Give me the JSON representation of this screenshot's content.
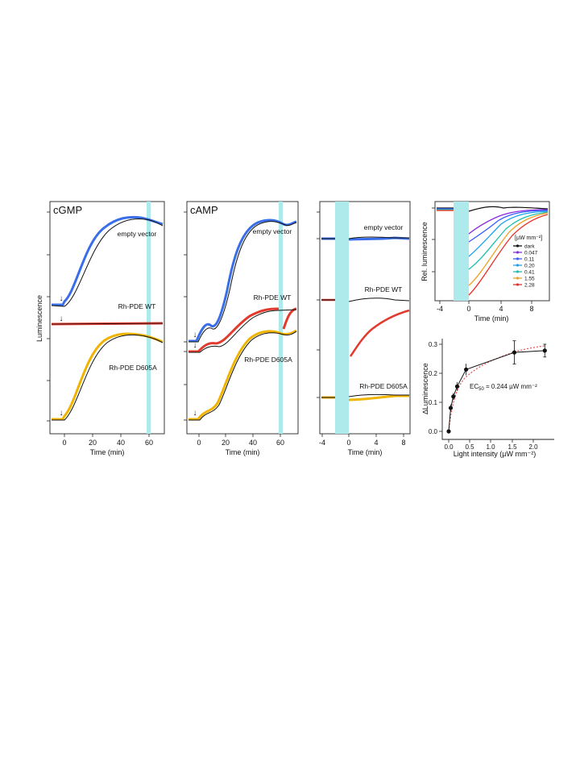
{
  "colors": {
    "light_band": "#aeeaec",
    "blue": "#3a6ee8",
    "red": "#e23a2e",
    "yellow": "#f0b400",
    "black": "#111111",
    "dashed_fit": "#e05050"
  },
  "chart_data": [
    {
      "id": "cgmp",
      "type": "line",
      "title": "cGMP",
      "xlabel": "Time (min)",
      "ylabel": "Luminescence",
      "xlim": [
        -10,
        70
      ],
      "xticks": [
        0,
        20,
        40,
        60
      ],
      "tick_labels": [
        "0",
        "20",
        "40",
        "60"
      ],
      "light_pulse": [
        60,
        62
      ],
      "stimulus_time": 0,
      "series": [
        {
          "name": "empty vector",
          "baseline": 0,
          "plateau": 1
        },
        {
          "name": "Rh-PDE WT",
          "baseline": 0,
          "plateau": 0
        },
        {
          "name": "Rh-PDE D605A",
          "baseline": 0,
          "plateau": 1
        }
      ]
    },
    {
      "id": "camp",
      "type": "line",
      "title": "cAMP",
      "xlabel": "Time (min)",
      "xlim": [
        -10,
        72
      ],
      "xticks": [
        0,
        20,
        40,
        60
      ],
      "tick_labels": [
        "0",
        "20",
        "40",
        "60"
      ],
      "light_pulse": [
        60,
        62
      ],
      "stimulus_time": 0,
      "series": [
        {
          "name": "empty vector"
        },
        {
          "name": "Rh-PDE WT"
        },
        {
          "name": "Rh-PDE D605A"
        }
      ]
    },
    {
      "id": "zoom",
      "type": "line",
      "xlabel": "Time (min)",
      "xlim": [
        -4.5,
        8.5
      ],
      "xticks": [
        -4,
        0,
        4,
        8
      ],
      "tick_labels": [
        "-4",
        "0",
        "4",
        "8"
      ],
      "light_pulse": [
        -2,
        0
      ],
      "series": [
        {
          "name": "empty vector"
        },
        {
          "name": "Rh-PDE WT"
        },
        {
          "name": "Rh-PDE D605A"
        }
      ]
    },
    {
      "id": "relative",
      "type": "line",
      "xlabel": "Time (min)",
      "ylabel": "Rel. luminescence",
      "xlim": [
        -4.5,
        10
      ],
      "xticks": [
        -4,
        0,
        4,
        8
      ],
      "tick_labels": [
        "-4",
        "0",
        "4",
        "8"
      ],
      "light_pulse": [
        -2,
        0
      ],
      "legend_title": "[µW mm⁻²]",
      "legend_position": "right",
      "series": [
        {
          "name": "dark",
          "color": "#111111",
          "min": 1.0
        },
        {
          "name": "0.047",
          "color": "#8a2be2",
          "min": 0.88
        },
        {
          "name": "0.11",
          "color": "#3a5bff",
          "min": 0.82
        },
        {
          "name": "0.20",
          "color": "#1ea0f0",
          "min": 0.78
        },
        {
          "name": "0.41",
          "color": "#18c0b0",
          "min": 0.76
        },
        {
          "name": "1.55",
          "color": "#f0a020",
          "min": 0.72
        },
        {
          "name": "2.28",
          "color": "#e8302a",
          "min": 0.71
        }
      ]
    },
    {
      "id": "dose",
      "type": "scatter",
      "xlabel": "Light intensity (µW mm⁻²)",
      "ylabel": "∆Luminescence",
      "xlim": [
        -0.1,
        2.4
      ],
      "ylim": [
        -0.02,
        0.33
      ],
      "xticks": [
        0,
        0.5,
        1.0,
        1.5,
        2.0
      ],
      "tick_labels_x": [
        "0.0",
        "0.5",
        "1.0",
        "1.5",
        "2.0"
      ],
      "yticks": [
        0,
        0.1,
        0.2,
        0.3
      ],
      "tick_labels_y": [
        "0.0",
        "0.1",
        "0.2",
        "0.3"
      ],
      "x": [
        0,
        0.047,
        0.11,
        0.2,
        0.41,
        1.55,
        2.28
      ],
      "y": [
        0.0,
        0.08,
        0.12,
        0.155,
        0.213,
        0.272,
        0.278
      ],
      "err": [
        0.0,
        0.012,
        0.012,
        0.015,
        0.02,
        0.04,
        0.022
      ],
      "annotation_main": "EC",
      "annotation_sub": "50",
      "annotation_tail": " = 0.244 µW mm⁻²"
    }
  ]
}
